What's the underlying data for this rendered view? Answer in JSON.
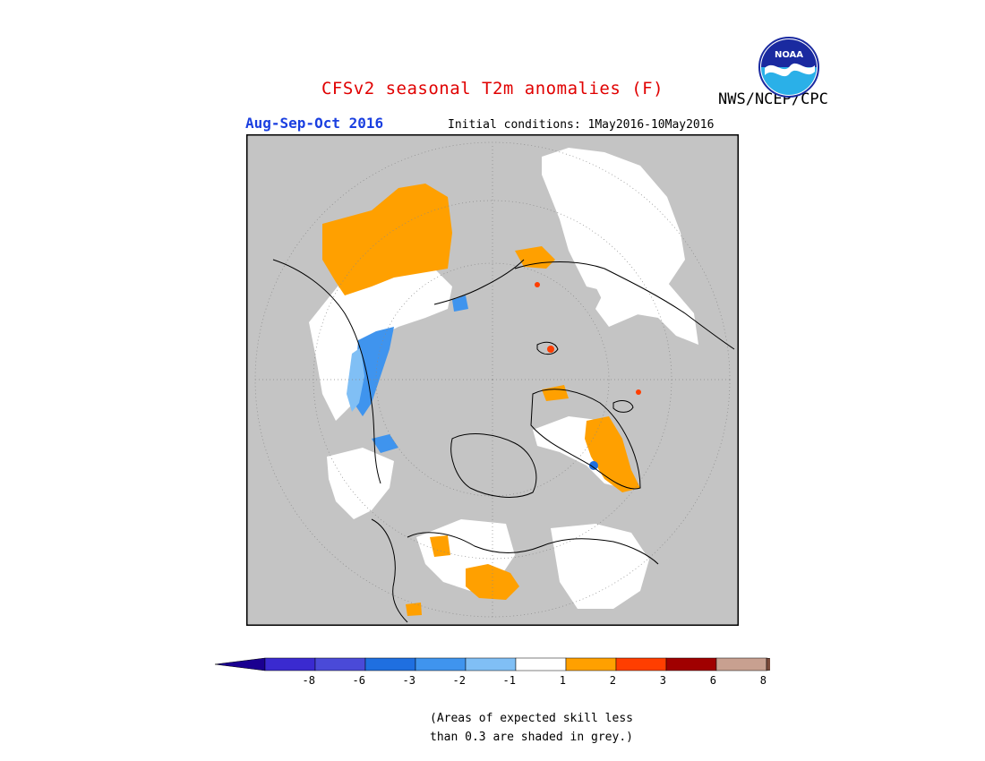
{
  "header": {
    "title": "CFSv2 seasonal T2m anomalies (F)",
    "agency": "NWS/NCEP/CPC",
    "season": "Aug-Sep-Oct 2016",
    "initial_conditions": "Initial conditions: 1May2016-10May2016",
    "logo_text": "NOAA"
  },
  "legend": {
    "labels": [
      "-8",
      "-6",
      "-3",
      "-2",
      "-1",
      "1",
      "2",
      "3",
      "6",
      "8"
    ],
    "colors": [
      "#3a2ad0",
      "#4a4ad8",
      "#1f6fe0",
      "#3f94ee",
      "#80bff5",
      "#ffffff",
      "#ffa000",
      "#ff3e00",
      "#a00000",
      "#c8a090"
    ],
    "low_end_color": "#1a0090",
    "high_end_color": "#7a4a3a"
  },
  "map": {
    "projection": "north polar stereographic",
    "colors": {
      "grey_low_skill": "#c4c4c4",
      "orange": "#ffa000",
      "white": "#ffffff",
      "light_blue": "#80bff5",
      "mid_blue": "#3f94ee",
      "red": "#ff3e00"
    }
  },
  "footnote": {
    "line1": "(Areas of expected skill less",
    "line2": "than 0.3 are shaded in grey.)"
  }
}
